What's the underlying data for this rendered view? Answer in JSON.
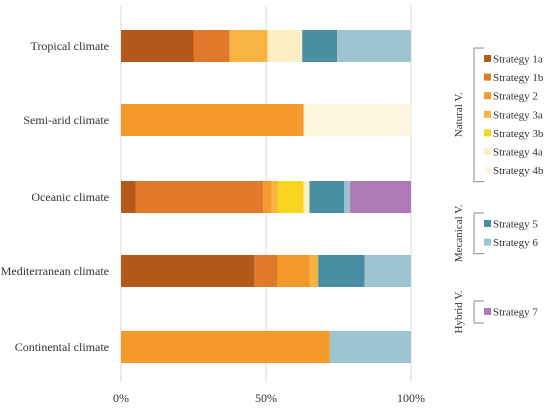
{
  "chart_data": {
    "type": "bar",
    "orientation": "horizontal",
    "stacked": true,
    "percent": true,
    "title": "",
    "xlabel": "",
    "ylabel": "",
    "xlim": [
      0,
      100
    ],
    "x_ticks": [
      "0%",
      "50%",
      "100%"
    ],
    "grid": "vertical",
    "legend_position": "right",
    "categories": [
      "Tropical climate",
      "Semi-arid climate",
      "Oceanic climate",
      "Mediterranean climate",
      "Continental climate"
    ],
    "series": [
      {
        "name": "Strategy 1a",
        "color": "#b35a1a",
        "values": [
          25,
          0,
          5,
          46,
          0
        ]
      },
      {
        "name": "Strategy 1b",
        "color": "#e07a2a",
        "values": [
          12.5,
          0,
          44,
          8,
          0
        ]
      },
      {
        "name": "Strategy 2",
        "color": "#f39a2a",
        "values": [
          0,
          63,
          3,
          11,
          72
        ]
      },
      {
        "name": "Strategy 3a",
        "color": "#f8b440",
        "values": [
          13,
          0,
          2,
          3,
          0
        ]
      },
      {
        "name": "Strategy 3b",
        "color": "#f7d51f",
        "values": [
          0,
          0,
          9,
          0,
          0
        ]
      },
      {
        "name": "Strategy 4a",
        "color": "#fcefc4",
        "values": [
          12,
          0,
          2,
          0,
          0
        ]
      },
      {
        "name": "Strategy 4b",
        "color": "#fdf6e0",
        "values": [
          0,
          37,
          0,
          0,
          0
        ]
      },
      {
        "name": "Strategy 5",
        "color": "#4a8ea3",
        "values": [
          12,
          0,
          12,
          16,
          0
        ]
      },
      {
        "name": "Strategy 6",
        "color": "#9dc4cf",
        "values": [
          25.5,
          0,
          2,
          16,
          28
        ]
      },
      {
        "name": "Strategy 7",
        "color": "#b07ab8",
        "values": [
          0,
          0,
          21,
          0,
          0
        ]
      }
    ],
    "legend_groups": [
      {
        "label": "Natural V.",
        "items": [
          "Strategy 1a",
          "Strategy 1b",
          "Strategy 2",
          "Strategy 3a",
          "Strategy 3b",
          "Strategy 4a",
          "Strategy 4b"
        ]
      },
      {
        "label": "Mecanical V.",
        "items": [
          "Strategy 5",
          "Strategy 6"
        ]
      },
      {
        "label": "Hybrid V.",
        "items": [
          "Strategy 7"
        ]
      }
    ]
  }
}
